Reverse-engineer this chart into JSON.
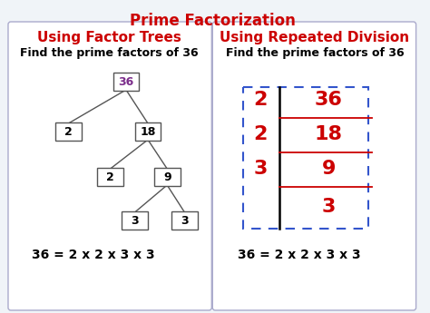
{
  "title": "Prime Factorization",
  "title_color": "#cc0000",
  "title_fontsize": 12,
  "left_heading": "Using Factor Trees",
  "right_heading": "Using Repeated Division",
  "heading_color": "#cc0000",
  "heading_fontsize": 11,
  "subheading": "Find the prime factors of 36",
  "subheading_color": "#000000",
  "subheading_fontsize": 9,
  "equation": "36 = 2 x 2 x 3 x 3",
  "equation_fontsize": 10,
  "bg_color": "#f0f4f8",
  "panel_bg": "#ffffff",
  "panel_border_color": "#aaaacc",
  "tree_36_color": "#7b2d8b",
  "tree_node_color": "#000000",
  "division_number_color": "#cc0000",
  "dashed_border_color": "#3355cc",
  "division_line_color": "#cc0000",
  "vert_bar_color": "#000000"
}
